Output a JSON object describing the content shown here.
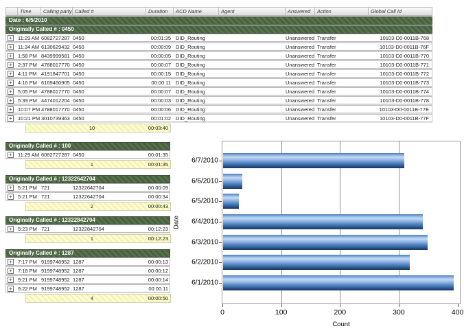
{
  "icons": {
    "expand": "+"
  },
  "colors": {
    "group_header_green": "#4d6547",
    "summary_yellow": "#f8f8c6",
    "bar_blue_light": "#c3daf2",
    "bar_blue_dark": "#17345a",
    "gridline_gray": "#8f8f8f"
  },
  "header": {
    "columns": [
      "Time",
      "Calling party #",
      "Called #",
      "Duration",
      "ACD Name",
      "Agent",
      "Answered",
      "Action",
      "Global Call Id"
    ]
  },
  "date_header": "Date : 6/5/2010",
  "main_group": {
    "header": "Originally Called # : 0450",
    "rows": [
      {
        "time": "11:29 AM",
        "calling": "6082727287",
        "called": "0450",
        "duration": "00:01:35",
        "acd": "DID_Routing",
        "agent": "",
        "answered": "Unanswered",
        "action": "Transfer",
        "global_id": "10103-D0-0011B-768"
      },
      {
        "time": "11:34 AM",
        "calling": "6130629432",
        "called": "0450",
        "duration": "00:00:09",
        "acd": "DID_Routing",
        "agent": "",
        "answered": "Unanswered",
        "action": "Transfer",
        "global_id": "10103-D0-0011B-76F"
      },
      {
        "time": "1:58 PM",
        "calling": "8439999581",
        "called": "0450",
        "duration": "00:00:05",
        "acd": "DID_Routing",
        "agent": "",
        "answered": "Unanswered",
        "action": "Transfer",
        "global_id": "10103-D0-0011B-770"
      },
      {
        "time": "2:37 PM",
        "calling": "4788017770",
        "called": "0450",
        "duration": "00:00:07",
        "acd": "DID_Routing",
        "agent": "",
        "answered": "Unanswered",
        "action": "Transfer",
        "global_id": "10103-D0-0011B-771"
      },
      {
        "time": "4:11 PM",
        "calling": "4191847701",
        "called": "0450",
        "duration": "00:00:15",
        "acd": "DID_Routing",
        "agent": "",
        "answered": "Unanswered",
        "action": "Transfer",
        "global_id": "10103-D0-0011B-772"
      },
      {
        "time": "4:16 PM",
        "calling": "6169460905",
        "called": "0450",
        "duration": "00:00:11",
        "acd": "DID_Routing",
        "agent": "",
        "answered": "Unanswered",
        "action": "Transfer",
        "global_id": "10103-D0-0011B-773"
      },
      {
        "time": "5:05 PM",
        "calling": "4788017770",
        "called": "0450",
        "duration": "00:00:07",
        "acd": "DID_Routing",
        "agent": "",
        "answered": "Unanswered",
        "action": "Transfer",
        "global_id": "10103-D0-0011B-774"
      },
      {
        "time": "5:39 PM",
        "calling": "4474012204",
        "called": "0450",
        "duration": "00:00:03",
        "acd": "DID_Routing",
        "agent": "",
        "answered": "Unanswered",
        "action": "Transfer",
        "global_id": "10103-D0-0011B-778"
      },
      {
        "time": "10:07 PM",
        "calling": "4788017770",
        "called": "0450",
        "duration": "00:00:06",
        "acd": "DID_Routing",
        "agent": "",
        "answered": "Unanswered",
        "action": "Transfer",
        "global_id": "10103-D0-0011B-77E"
      },
      {
        "time": "10:21 PM",
        "calling": "3010739363",
        "called": "0450",
        "duration": "00:01:02",
        "acd": "DID_Routing",
        "agent": "",
        "answered": "Unanswered",
        "action": "Transfer",
        "global_id": "10103-D0-0011B-77F"
      }
    ],
    "summary": {
      "count": "10",
      "total": "00:03:40"
    }
  },
  "side_groups": [
    {
      "header": "Originally Called # : 100",
      "rows": [
        {
          "time": "11:29 AM",
          "calling": "6082727287",
          "called": "0450",
          "duration": "00:01:35"
        }
      ],
      "summary": {
        "count": "1",
        "total": "00:01:35"
      }
    },
    {
      "header": "Originally Called # : 12322642704",
      "rows": [
        {
          "time": "5:21 PM",
          "calling": "721",
          "called": "12322642704",
          "duration": "00:00:09"
        },
        {
          "time": "5:21 PM",
          "calling": "721",
          "called": "12322642704",
          "duration": "00:00:34"
        }
      ],
      "summary": {
        "count": "2",
        "total": "00:00:43"
      }
    },
    {
      "header": "Originally Called # : 12322842704",
      "rows": [
        {
          "time": "5:23 PM",
          "calling": "721",
          "called": "12322842704",
          "duration": "00:12:23"
        }
      ],
      "summary": {
        "count": "1",
        "total": "00:12:23"
      }
    },
    {
      "header": "Originally Called # : 1287",
      "rows": [
        {
          "time": "7:17 PM",
          "calling": "9199748952",
          "called": "1287",
          "duration": "00:00:13"
        },
        {
          "time": "7:18 PM",
          "calling": "9199748952",
          "called": "1287",
          "duration": "00:00:12"
        },
        {
          "time": "9:21 PM",
          "calling": "9199748952",
          "called": "1287",
          "duration": "00:00:14"
        },
        {
          "time": "9:22 PM",
          "calling": "9199748952",
          "called": "1287",
          "duration": "00:00:11"
        }
      ],
      "summary": {
        "count": "4",
        "total": "00:00:50"
      }
    }
  ],
  "chart_data": {
    "type": "bar",
    "orientation": "horizontal",
    "title": "",
    "categories": [
      "6/7/2010",
      "6/6/2010",
      "6/5/2010",
      "6/4/2010",
      "6/3/2010",
      "6/2/2010",
      "6/1/2010"
    ],
    "values": [
      308,
      33,
      27,
      340,
      348,
      318,
      392
    ],
    "xlabel": "Count",
    "ylabel": "Date",
    "xlim": [
      0,
      404
    ],
    "xticks": [
      0,
      100,
      200,
      300,
      400
    ],
    "gridlines": [
      100,
      200,
      300
    ],
    "grid": true,
    "legend": "none"
  }
}
